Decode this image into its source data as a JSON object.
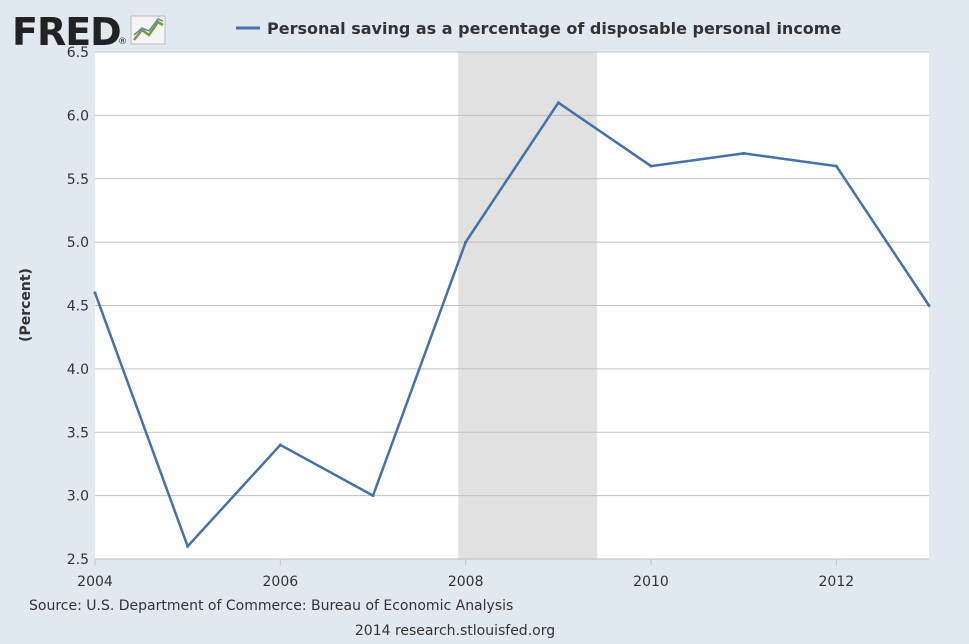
{
  "logo": {
    "text": "FRED",
    "registered": "®",
    "icon": "fred-chart-icon"
  },
  "legend": {
    "label": "Personal saving as a percentage of disposable personal income"
  },
  "footer": {
    "source": "Source: U.S. Department of Commerce: Bureau of Economic Analysis",
    "credit": "2014 research.stlouisfed.org"
  },
  "colors": {
    "background": "#e1e9f0",
    "plot": "#ffffff",
    "series": "#4572a7",
    "grid": "#c0c0c0",
    "recession": "#e1e1e1",
    "text": "#333333"
  },
  "chart_data": {
    "type": "line",
    "title": "",
    "xlabel": "",
    "ylabel": "(Percent)",
    "x": [
      2004,
      2005,
      2006,
      2007,
      2008,
      2009,
      2010,
      2011,
      2012,
      2013
    ],
    "series": [
      {
        "name": "Personal saving as a percentage of disposable personal income",
        "values": [
          4.6,
          2.6,
          3.4,
          3.0,
          5.0,
          6.1,
          5.6,
          5.7,
          5.6,
          4.5
        ]
      }
    ],
    "xlim": [
      2004,
      2013
    ],
    "ylim": [
      2.5,
      6.5
    ],
    "xticks": [
      "2004",
      "2006",
      "2008",
      "2010",
      "2012"
    ],
    "yticks": [
      "2.5",
      "3.0",
      "3.5",
      "4.0",
      "4.5",
      "5.0",
      "5.5",
      "6.0",
      "6.5"
    ],
    "recession_band": {
      "start": 2007.92,
      "end": 2009.42
    },
    "grid": true,
    "legend_position": "top"
  }
}
